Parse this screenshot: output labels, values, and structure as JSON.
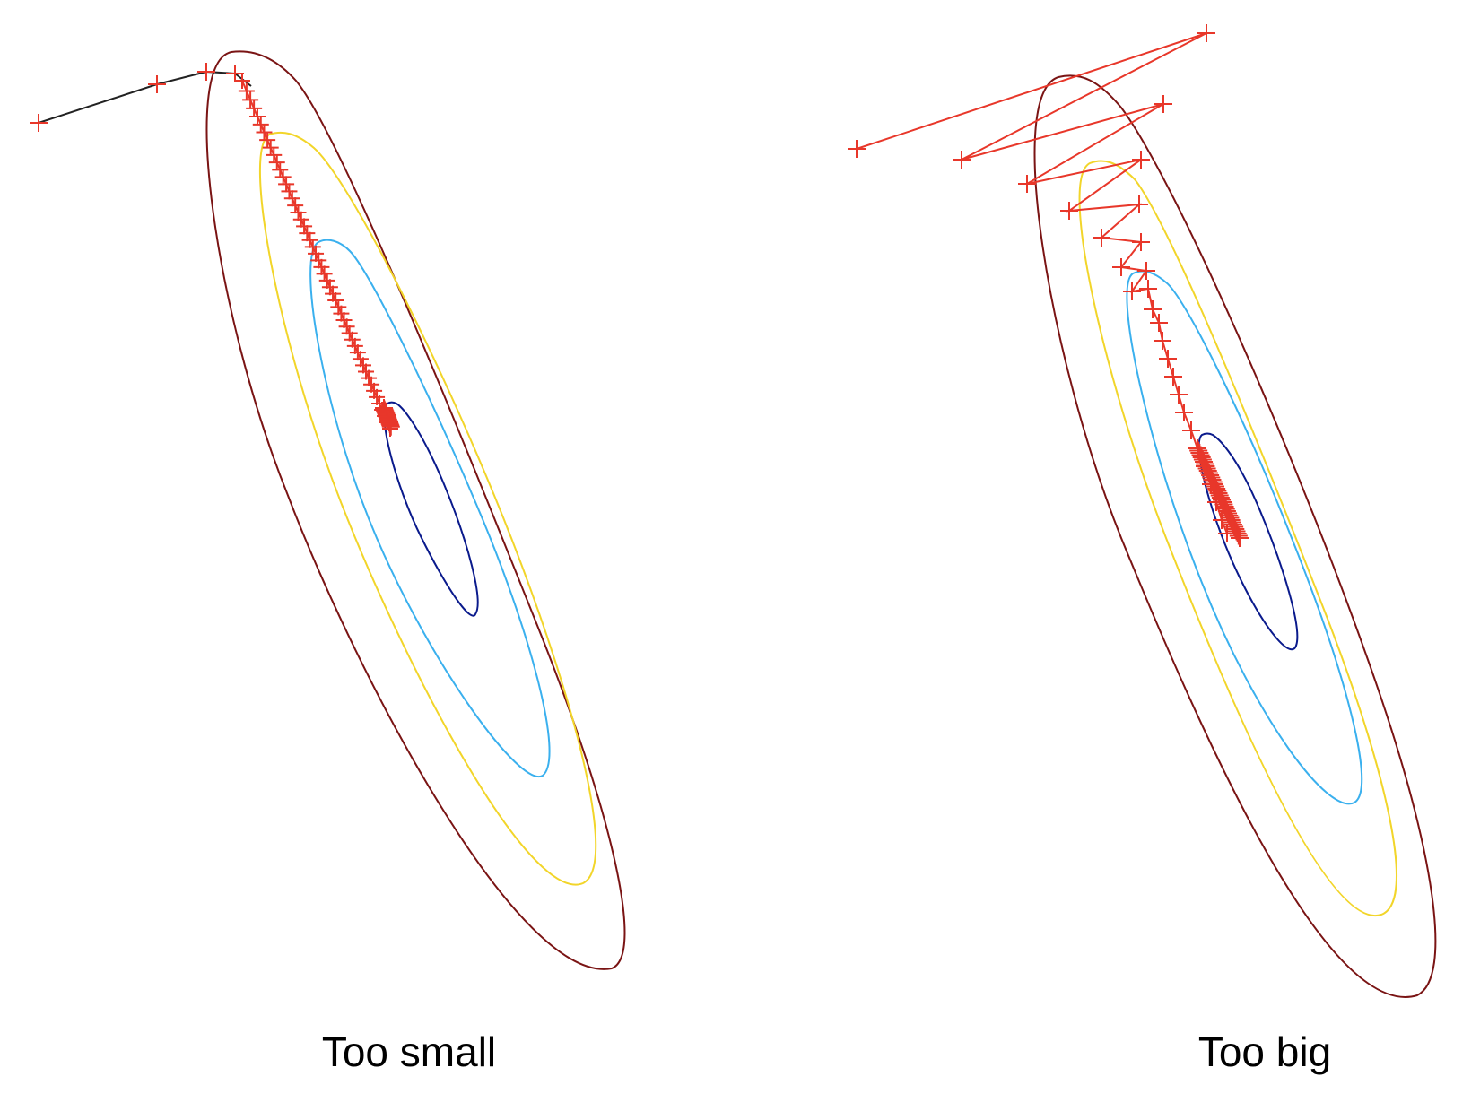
{
  "captions": {
    "left": "Too small",
    "right": "Too big"
  },
  "colors": {
    "contour_outer": "#7a1414",
    "contour_yellow": "#f2d52a",
    "contour_lightblue": "#3ab0ee",
    "contour_inner": "#0a1a8c",
    "path_small": "#222222",
    "marker": "#e8372a",
    "path_big": "#e8372a"
  }
}
